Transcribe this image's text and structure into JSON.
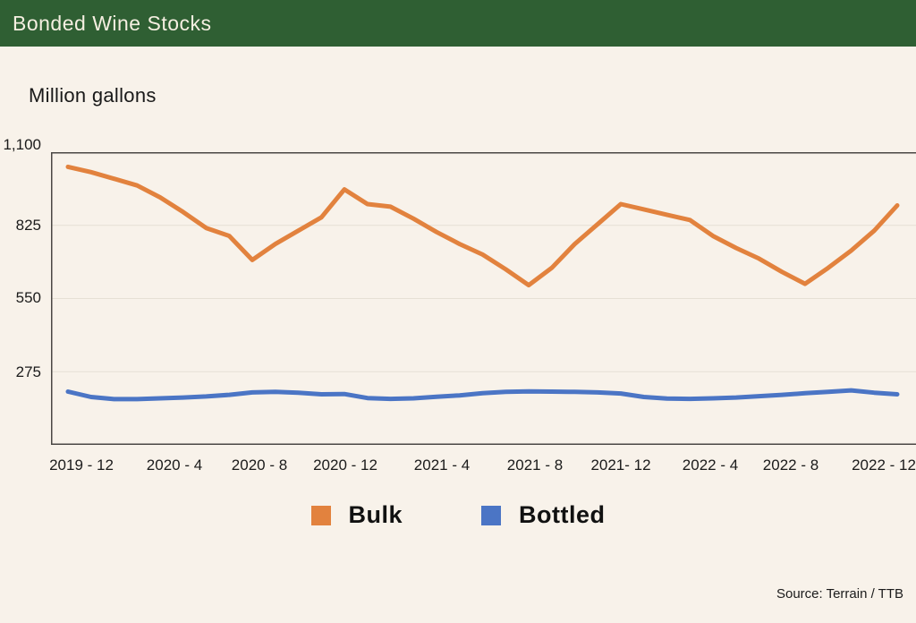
{
  "header": {
    "title": "Bonded Wine Stocks",
    "bg_color": "#2F5F33",
    "text_color": "#F5EFE1"
  },
  "chart": {
    "units_label": "Million gallons",
    "y_ticks": [
      "1,100",
      "825",
      "550",
      "275"
    ],
    "x_ticks": [
      "2019 - 12",
      "2020 - 4",
      "2020 - 8",
      "2020 - 12",
      "2021 - 4",
      "2021 - 8",
      "2021- 12",
      "2022 - 4",
      "2022 - 8",
      "2022 - 12"
    ],
    "background": "#F8F2EA",
    "axis_color": "#4A4744",
    "gridline_color": "#E6E0D5"
  },
  "legend": {
    "items": [
      {
        "label": "Bulk",
        "color": "#E2823E"
      },
      {
        "label": "Bottled",
        "color": "#4B75C5"
      }
    ]
  },
  "source": "Source: Terrain / TTB",
  "chart_data": {
    "type": "line",
    "title": "Bonded Wine Stocks",
    "ylabel": "Million gallons",
    "xlabel": "",
    "ylim": [
      0,
      1100
    ],
    "y_tick_values": [
      1100,
      825,
      550,
      275
    ],
    "grid": true,
    "legend_position": "bottom",
    "x_tick_labels": [
      "2019 - 12",
      "2020 - 4",
      "2020 - 8",
      "2020 - 12",
      "2021 - 4",
      "2021 - 8",
      "2021- 12",
      "2022 - 4",
      "2022 - 8",
      "2022 - 12"
    ],
    "x": [
      "2019-12",
      "2020-01",
      "2020-02",
      "2020-03",
      "2020-04",
      "2020-05",
      "2020-06",
      "2020-07",
      "2020-08",
      "2020-09",
      "2020-10",
      "2020-11",
      "2020-12",
      "2021-01",
      "2021-02",
      "2021-03",
      "2021-04",
      "2021-05",
      "2021-06",
      "2021-07",
      "2021-08",
      "2021-09",
      "2021-10",
      "2021-11",
      "2021-12",
      "2022-01",
      "2022-02",
      "2022-03",
      "2022-04",
      "2022-05",
      "2022-06",
      "2022-07",
      "2022-08",
      "2022-09",
      "2022-10",
      "2022-11",
      "2022-12"
    ],
    "series": [
      {
        "name": "Bulk",
        "color": "#E2823E",
        "values": [
          1045,
          1025,
          1000,
          975,
          930,
          875,
          815,
          785,
          695,
          755,
          805,
          855,
          960,
          905,
          895,
          850,
          800,
          755,
          715,
          660,
          600,
          665,
          755,
          830,
          905,
          885,
          865,
          845,
          785,
          740,
          700,
          650,
          605,
          665,
          730,
          805,
          900
        ]
      },
      {
        "name": "Bottled",
        "color": "#4B75C5",
        "values": [
          200,
          180,
          172,
          172,
          175,
          178,
          182,
          188,
          197,
          199,
          196,
          190,
          191,
          176,
          173,
          175,
          181,
          186,
          194,
          199,
          201,
          200,
          199,
          197,
          193,
          180,
          174,
          173,
          175,
          178,
          183,
          188,
          194,
          199,
          205,
          196,
          190
        ]
      }
    ]
  }
}
